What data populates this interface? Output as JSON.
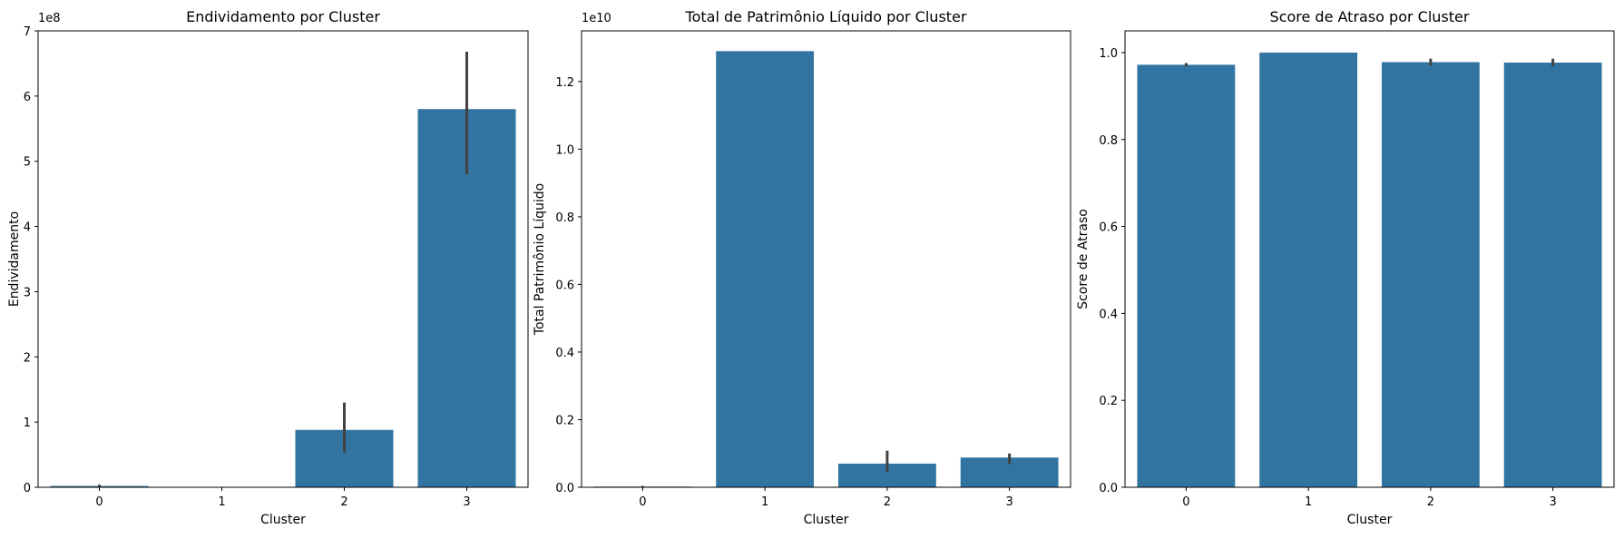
{
  "chart_data": [
    {
      "type": "bar",
      "title": "Endividamento por Cluster",
      "xlabel": "Cluster",
      "ylabel": "Endividamento",
      "scale_label": "1e8",
      "categories": [
        "0",
        "1",
        "2",
        "3"
      ],
      "values": [
        2000000,
        0,
        88000000,
        580000000
      ],
      "error_bars": [
        [
          0,
          4000000
        ],
        [
          0,
          0
        ],
        [
          53000000,
          130000000
        ],
        [
          480000000,
          668000000
        ]
      ],
      "ylim": [
        0,
        700000000
      ],
      "yticks": [
        0,
        1,
        2,
        3,
        4,
        5,
        6,
        7
      ],
      "ytick_labels": [
        "0",
        "1",
        "2",
        "3",
        "4",
        "5",
        "6",
        "7"
      ],
      "grid": false,
      "color": "#3274a1"
    },
    {
      "type": "bar",
      "title": "Total de Patrimônio Líquido por Cluster",
      "xlabel": "Cluster",
      "ylabel": "Total Patrimônio Líquido",
      "scale_label": "1e10",
      "categories": [
        "0",
        "1",
        "2",
        "3"
      ],
      "values": [
        20000000,
        12900000000,
        700000000,
        880000000
      ],
      "error_bars": [
        [
          0,
          40000000
        ],
        [
          12900000000,
          12900000000
        ],
        [
          460000000,
          1080000000
        ],
        [
          680000000,
          1000000000
        ]
      ],
      "ylim": [
        0,
        13500000000
      ],
      "yticks": [
        0,
        0.2,
        0.4,
        0.6,
        0.8,
        1.0,
        1.2
      ],
      "ytick_labels": [
        "0.0",
        "0.2",
        "0.4",
        "0.6",
        "0.8",
        "1.0",
        "1.2"
      ],
      "grid": false,
      "color": "#3274a1"
    },
    {
      "type": "bar",
      "title": "Score de Atraso por Cluster",
      "xlabel": "Cluster",
      "ylabel": "Score de Atraso",
      "scale_label": "",
      "categories": [
        "0",
        "1",
        "2",
        "3"
      ],
      "values": [
        0.972,
        1.0,
        0.978,
        0.977
      ],
      "error_bars": [
        [
          0.968,
          0.976
        ],
        [
          1.0,
          1.0
        ],
        [
          0.97,
          0.986
        ],
        [
          0.968,
          0.986
        ]
      ],
      "ylim": [
        0,
        1.05
      ],
      "yticks": [
        0,
        0.2,
        0.4,
        0.6,
        0.8,
        1.0
      ],
      "ytick_labels": [
        "0.0",
        "0.2",
        "0.4",
        "0.6",
        "0.8",
        "1.0"
      ],
      "grid": false,
      "color": "#3274a1"
    }
  ]
}
